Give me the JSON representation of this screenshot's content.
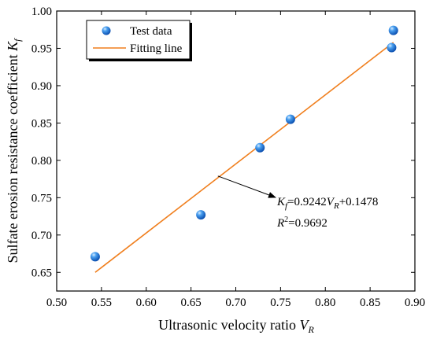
{
  "chart_data": {
    "type": "scatter",
    "xlabel": "Ultrasonic velocity ratio V_R",
    "xlabel_main": "Ultrasonic velocity ratio ",
    "xlabel_var": "V",
    "xlabel_sub": "R",
    "ylabel": "Sulfate erosion resistance coefficient K_f",
    "ylabel_main": "Sulfate erosion resistance coefficient ",
    "ylabel_var": "K",
    "ylabel_sub": "f",
    "xlim": [
      0.5,
      0.9
    ],
    "ylim": [
      0.625,
      1.0
    ],
    "xticks": [
      "0.50",
      "0.55",
      "0.60",
      "0.65",
      "0.70",
      "0.75",
      "0.80",
      "0.85",
      "0.90"
    ],
    "yticks": [
      "0.65",
      "0.70",
      "0.75",
      "0.80",
      "0.85",
      "0.90",
      "0.95",
      "1.00"
    ],
    "grid": false,
    "legend_position": "top-left",
    "series": [
      {
        "name": "Test data",
        "kind": "points",
        "color": "#1f6fd1",
        "x": [
          0.543,
          0.661,
          0.727,
          0.761,
          0.874,
          0.876
        ],
        "y": [
          0.671,
          0.727,
          0.817,
          0.855,
          0.951,
          0.974
        ]
      },
      {
        "name": "Fitting line",
        "kind": "line",
        "color": "#f07f1e",
        "x": [
          0.543,
          0.876
        ],
        "y": [
          0.65,
          0.958
        ]
      }
    ],
    "annotation": {
      "equation_var": "K",
      "equation_var_sub": "f",
      "equation_mid": "=0.9242",
      "equation_x_var": "V",
      "equation_x_sub": "R",
      "equation_tail": "+0.1478",
      "r2_label": "R",
      "r2_sup": "2",
      "r2_value": "=0.9692",
      "arrow_target": {
        "x": 0.68,
        "y": 0.779
      }
    }
  }
}
